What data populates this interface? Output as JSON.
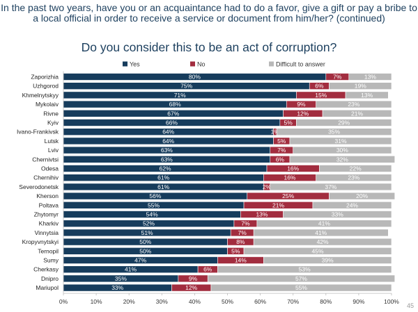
{
  "header": {
    "question": "In the past two years, have you or an acquaintance had to do a favor, give a gift or pay a bribe to a local official in order to receive a service or document from him/her? (continued)",
    "subtitle": "Do you consider this to be an act of corruption?"
  },
  "page_number": "45",
  "chart_data": {
    "type": "bar",
    "orientation": "horizontal",
    "stacked": true,
    "categories": [
      "Zaporizhia",
      "Uzhgorod",
      "Khmelnytskyy",
      "Mykolaiv",
      "Rivne",
      "Kyiv",
      "Ivano-Frankivsk",
      "Lutsk",
      "Lviv",
      "Chernivtsi",
      "Odesa",
      "Chernihiv",
      "Severodonetsk",
      "Kherson",
      "Poltava",
      "Zhytomyr",
      "Kharkiv",
      "Vinnytsia",
      "Kropyvnytskyi",
      "Ternopil",
      "Sumy",
      "Cherkasy",
      "Dnipro",
      "Mariupol"
    ],
    "series": [
      {
        "name": "Yes",
        "color": "#163c5c",
        "values": [
          80,
          75,
          71,
          68,
          67,
          66,
          64,
          64,
          63,
          63,
          62,
          61,
          61,
          56,
          55,
          54,
          52,
          51,
          50,
          50,
          47,
          41,
          35,
          33
        ]
      },
      {
        "name": "No",
        "color": "#a22d3f",
        "values": [
          7,
          6,
          15,
          9,
          12,
          5,
          1,
          5,
          7,
          6,
          16,
          16,
          2,
          25,
          21,
          13,
          7,
          7,
          8,
          5,
          14,
          6,
          9,
          12
        ]
      },
      {
        "name": "Difficult to answer",
        "color": "#b8b8b8",
        "values": [
          13,
          19,
          13,
          23,
          21,
          29,
          35,
          31,
          30,
          32,
          22,
          23,
          37,
          20,
          24,
          33,
          41,
          41,
          42,
          45,
          39,
          53,
          57,
          55
        ]
      }
    ],
    "value_suffix": "%",
    "xlim": [
      0,
      100
    ],
    "xticks": [
      "0%",
      "10%",
      "20%",
      "30%",
      "40%",
      "50%",
      "60%",
      "70%",
      "80%",
      "90%",
      "100%"
    ],
    "legend_position": "top",
    "grid": false
  }
}
